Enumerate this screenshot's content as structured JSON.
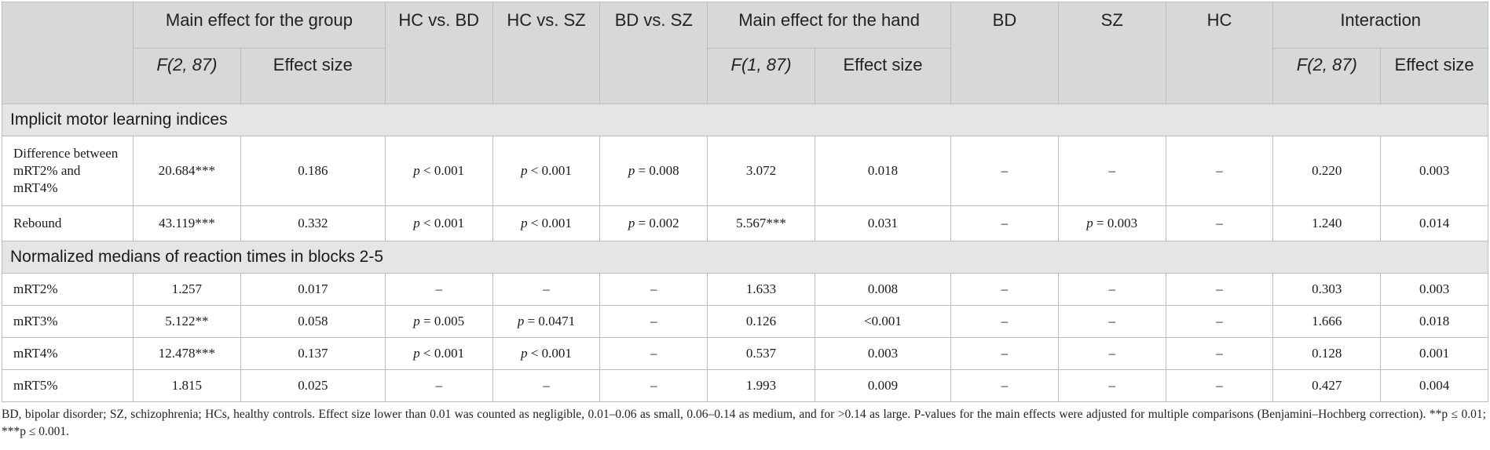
{
  "table": {
    "header_top": {
      "group": "Main effect for the group",
      "hc_bd": "HC vs. BD",
      "hc_sz": "HC vs. SZ",
      "bd_sz": "BD vs. SZ",
      "hand": "Main effect for the hand",
      "bd": "BD",
      "sz": "SZ",
      "hc": "HC",
      "interaction": "Interaction"
    },
    "header_sub": {
      "group_f": "F(2, 87)",
      "group_es": "Effect size",
      "hand_f": "F(1, 87)",
      "hand_es": "Effect size",
      "int_f": "F(2, 87)",
      "int_es": "Effect size"
    },
    "sections": [
      {
        "title": "Implicit motor learning indices",
        "rows": [
          {
            "label": "Difference between mRT2% and mRT4%",
            "cells": [
              "20.684***",
              "0.186",
              "p < 0.001",
              "p < 0.001",
              "p = 0.008",
              "3.072",
              "0.018",
              "–",
              "–",
              "–",
              "0.220",
              "0.003"
            ]
          },
          {
            "label": "Rebound",
            "cells": [
              "43.119***",
              "0.332",
              "p < 0.001",
              "p < 0.001",
              "p = 0.002",
              "5.567***",
              "0.031",
              "–",
              "p = 0.003",
              "–",
              "1.240",
              "0.014"
            ]
          }
        ]
      },
      {
        "title": "Normalized medians of reaction times in blocks 2-5",
        "rows": [
          {
            "label": "mRT2%",
            "cells": [
              "1.257",
              "0.017",
              "–",
              "–",
              "–",
              "1.633",
              "0.008",
              "–",
              "–",
              "–",
              "0.303",
              "0.003"
            ]
          },
          {
            "label": "mRT3%",
            "cells": [
              "5.122**",
              "0.058",
              "p = 0.005",
              "p = 0.0471",
              "–",
              "0.126",
              "<0.001",
              "–",
              "–",
              "–",
              "1.666",
              "0.018"
            ]
          },
          {
            "label": "mRT4%",
            "cells": [
              "12.478***",
              "0.137",
              "p < 0.001",
              "p < 0.001",
              "–",
              "0.537",
              "0.003",
              "–",
              "–",
              "–",
              "0.128",
              "0.001"
            ]
          },
          {
            "label": "mRT5%",
            "cells": [
              "1.815",
              "0.025",
              "–",
              "–",
              "–",
              "1.993",
              "0.009",
              "–",
              "–",
              "–",
              "0.427",
              "0.004"
            ]
          }
        ]
      }
    ]
  },
  "footnote": "BD, bipolar disorder; SZ, schizophrenia; HCs, healthy controls. Effect size lower than 0.01 was counted as negligible, 0.01–0.06 as small, 0.06–0.14 as medium, and for >0.14 as large. P-values for the main effects were adjusted for multiple comparisons (Benjamini–Hochberg correction). **p ≤ 0.01; ***p ≤ 0.001."
}
